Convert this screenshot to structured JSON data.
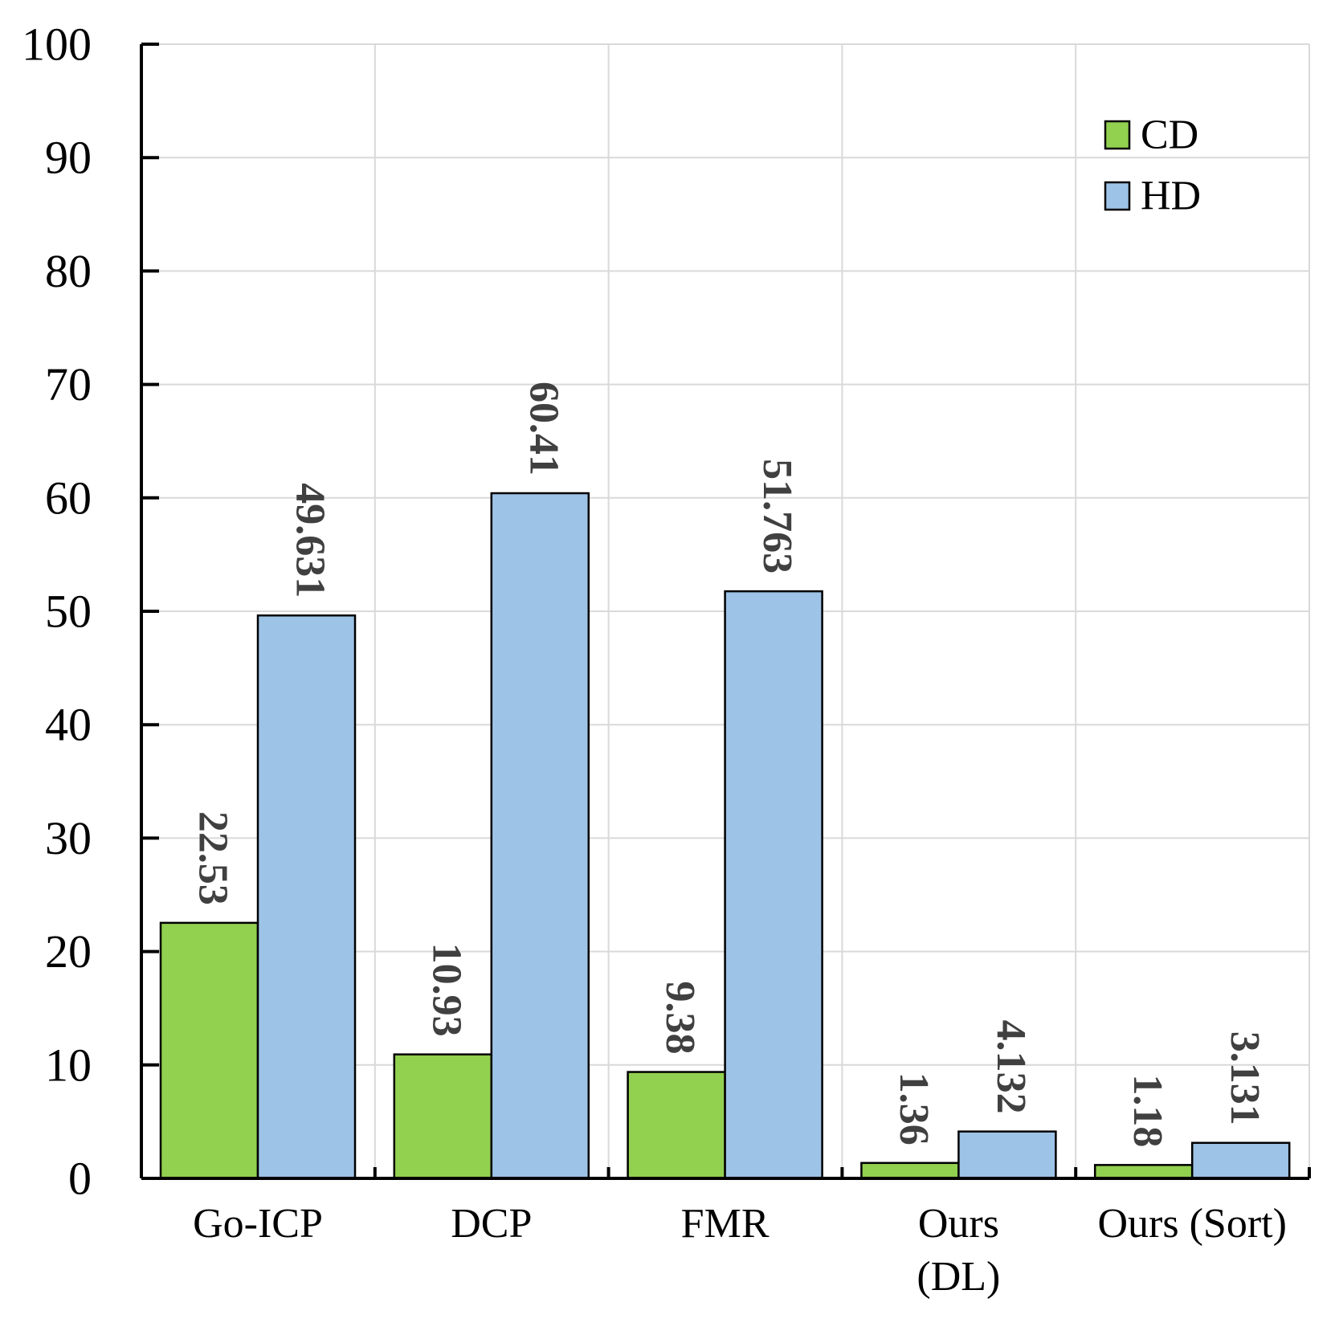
{
  "chart_data": {
    "type": "bar",
    "categories": [
      "Go-ICP",
      "DCP",
      "FMR",
      "Ours (DL)",
      "Ours (Sort)"
    ],
    "category_label_lines": [
      [
        "Go-ICP"
      ],
      [
        "DCP"
      ],
      [
        "FMR"
      ],
      [
        "Ours",
        "(DL)"
      ],
      [
        "Ours (Sort)"
      ]
    ],
    "series": [
      {
        "name": "CD",
        "values": [
          22.53,
          10.93,
          9.38,
          1.36,
          1.18
        ],
        "labels": [
          "22.53",
          "10.93",
          "9.38",
          "1.36",
          "1.18"
        ],
        "color": "#92D050"
      },
      {
        "name": "HD",
        "values": [
          49.631,
          60.41,
          51.763,
          4.132,
          3.131
        ],
        "labels": [
          "49.631",
          "60.41",
          "51.763",
          "4.132",
          "3.131"
        ],
        "color": "#9DC3E6"
      }
    ],
    "title": "",
    "xlabel": "",
    "ylabel": "",
    "ylim": [
      0,
      100
    ],
    "yticks": [
      0,
      10,
      20,
      30,
      40,
      50,
      60,
      70,
      80,
      90,
      100
    ],
    "grid": true,
    "legend_position": "top-right"
  }
}
